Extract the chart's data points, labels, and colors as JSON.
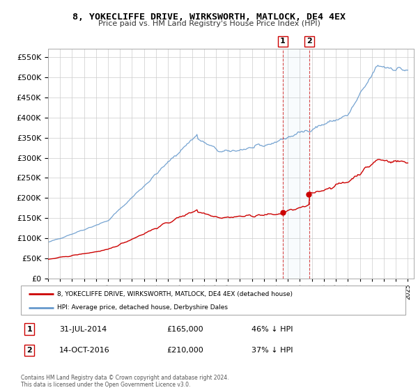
{
  "title": "8, YOKECLIFFE DRIVE, WIRKSWORTH, MATLOCK, DE4 4EX",
  "subtitle": "Price paid vs. HM Land Registry's House Price Index (HPI)",
  "legend_line1": "8, YOKECLIFFE DRIVE, WIRKSWORTH, MATLOCK, DE4 4EX (detached house)",
  "legend_line2": "HPI: Average price, detached house, Derbyshire Dales",
  "sale1_label": "1",
  "sale1_date": "31-JUL-2014",
  "sale1_price": "£165,000",
  "sale1_hpi": "46% ↓ HPI",
  "sale1_year": 2014.58,
  "sale1_value": 165000,
  "sale2_label": "2",
  "sale2_date": "14-OCT-2016",
  "sale2_price": "£210,000",
  "sale2_hpi": "37% ↓ HPI",
  "sale2_year": 2016.79,
  "sale2_value": 210000,
  "footer": "Contains HM Land Registry data © Crown copyright and database right 2024.\nThis data is licensed under the Open Government Licence v3.0.",
  "red_color": "#cc0000",
  "blue_color": "#6699cc",
  "ylim_max": 570000,
  "xlim_start": 1995.0,
  "xlim_end": 2025.5
}
